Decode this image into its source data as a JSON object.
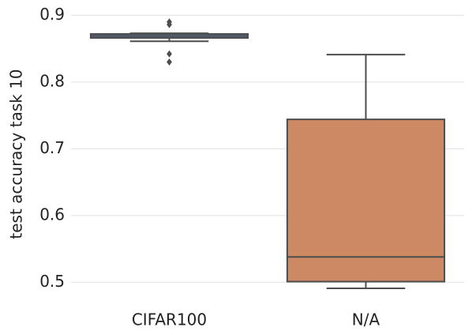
{
  "chart_data": {
    "type": "box",
    "ylabel": "test accuracy task 10",
    "categories": [
      "CIFAR100",
      "N/A"
    ],
    "colors": [
      "#5975a4",
      "#cc8963"
    ],
    "boxes": [
      {
        "whislo": 0.861,
        "q1": 0.866,
        "med": 0.869,
        "q3": 0.872,
        "whishi": 0.873,
        "fliers": [
          0.89,
          0.886,
          0.842,
          0.83
        ]
      },
      {
        "whislo": 0.491,
        "q1": 0.501,
        "med": 0.538,
        "q3": 0.744,
        "whishi": 0.841,
        "fliers": []
      }
    ],
    "ylim": [
      0.472,
      0.911
    ],
    "yticks": [
      0.5,
      0.6,
      0.7,
      0.8,
      0.9
    ],
    "grid": true
  }
}
